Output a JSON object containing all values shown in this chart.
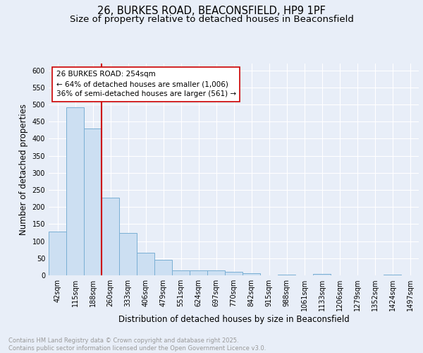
{
  "title_line1": "26, BURKES ROAD, BEACONSFIELD, HP9 1PF",
  "title_line2": "Size of property relative to detached houses in Beaconsfield",
  "xlabel": "Distribution of detached houses by size in Beaconsfield",
  "ylabel": "Number of detached properties",
  "categories": [
    "42sqm",
    "115sqm",
    "188sqm",
    "260sqm",
    "333sqm",
    "406sqm",
    "479sqm",
    "551sqm",
    "624sqm",
    "697sqm",
    "770sqm",
    "842sqm",
    "915sqm",
    "988sqm",
    "1061sqm",
    "1133sqm",
    "1206sqm",
    "1279sqm",
    "1352sqm",
    "1424sqm",
    "1497sqm"
  ],
  "values": [
    128,
    492,
    430,
    228,
    125,
    67,
    46,
    14,
    14,
    15,
    10,
    7,
    0,
    2,
    0,
    5,
    0,
    0,
    0,
    3,
    0
  ],
  "bar_color": "#ccdff2",
  "bar_edge_color": "#7aafd4",
  "vline_color": "#cc0000",
  "annotation_text": "26 BURKES ROAD: 254sqm\n← 64% of detached houses are smaller (1,006)\n36% of semi-detached houses are larger (561) →",
  "annotation_box_color": "#ffffff",
  "annotation_box_edge": "#cc0000",
  "ylim": [
    0,
    620
  ],
  "yticks": [
    0,
    50,
    100,
    150,
    200,
    250,
    300,
    350,
    400,
    450,
    500,
    550,
    600
  ],
  "bg_color": "#e8eef8",
  "plot_bg_color": "#e8eef8",
  "footer": "Contains HM Land Registry data © Crown copyright and database right 2025.\nContains public sector information licensed under the Open Government Licence v3.0.",
  "footer_color": "#999999",
  "title_fontsize": 10.5,
  "subtitle_fontsize": 9.5,
  "axis_label_fontsize": 8.5,
  "tick_fontsize": 7,
  "annotation_fontsize": 7.5,
  "footer_fontsize": 6
}
